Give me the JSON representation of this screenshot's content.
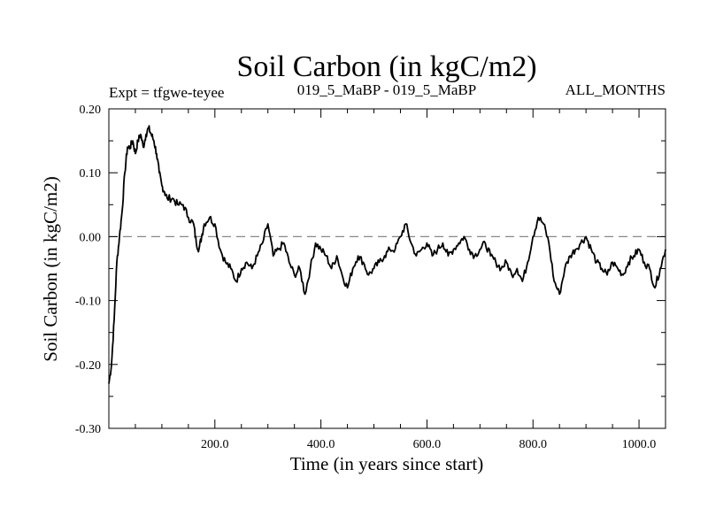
{
  "chart_data": {
    "type": "line",
    "title": "Soil Carbon (in kgC/m2)",
    "subtitle_left": "Expt = tfgwe-teyee",
    "subtitle_center": "019_5_MaBP - 019_5_MaBP",
    "subtitle_right": "ALL_MONTHS",
    "xlabel": "Time (in years since start)",
    "ylabel": "Soil Carbon (in kgC/m2)",
    "xlim": [
      0,
      1050
    ],
    "ylim": [
      -0.3,
      0.2
    ],
    "x_ticks": [
      200,
      400,
      600,
      800,
      1000
    ],
    "x_tick_labels": [
      "200.0",
      "400.0",
      "600.0",
      "800.0",
      "1000.0"
    ],
    "y_ticks": [
      0.2,
      0.1,
      0.0,
      -0.1,
      -0.2,
      -0.3
    ],
    "y_tick_labels": [
      "0.20",
      "0.10",
      "0.00",
      "-0.10",
      "-0.20",
      "-0.30"
    ],
    "reference_line": {
      "y": 0.0,
      "style": "dashed"
    },
    "series": [
      {
        "name": "Soil Carbon",
        "x": [
          0,
          5,
          10,
          15,
          20,
          25,
          30,
          35,
          40,
          45,
          50,
          55,
          60,
          65,
          70,
          75,
          80,
          85,
          90,
          95,
          100,
          105,
          110,
          120,
          130,
          140,
          150,
          160,
          165,
          170,
          175,
          180,
          190,
          200,
          210,
          220,
          230,
          240,
          250,
          260,
          270,
          280,
          290,
          300,
          310,
          320,
          330,
          340,
          350,
          360,
          370,
          380,
          390,
          400,
          410,
          420,
          430,
          440,
          450,
          460,
          470,
          480,
          490,
          500,
          510,
          520,
          530,
          540,
          550,
          560,
          570,
          580,
          590,
          600,
          610,
          620,
          630,
          640,
          650,
          660,
          670,
          680,
          690,
          700,
          710,
          720,
          730,
          740,
          750,
          760,
          770,
          780,
          790,
          800,
          810,
          820,
          830,
          840,
          850,
          860,
          870,
          880,
          890,
          900,
          910,
          920,
          930,
          940,
          950,
          960,
          970,
          980,
          990,
          1000,
          1010,
          1020,
          1030,
          1040,
          1050
        ],
        "values": [
          -0.23,
          -0.2,
          -0.13,
          -0.04,
          0.0,
          0.04,
          0.1,
          0.14,
          0.14,
          0.15,
          0.13,
          0.15,
          0.16,
          0.14,
          0.16,
          0.17,
          0.16,
          0.15,
          0.13,
          0.1,
          0.08,
          0.07,
          0.06,
          0.06,
          0.05,
          0.05,
          0.03,
          0.02,
          -0.01,
          -0.02,
          0.0,
          0.02,
          0.03,
          0.02,
          -0.02,
          -0.04,
          -0.05,
          -0.07,
          -0.05,
          -0.04,
          -0.05,
          -0.03,
          -0.01,
          0.02,
          -0.03,
          -0.02,
          -0.01,
          -0.04,
          -0.06,
          -0.05,
          -0.09,
          -0.05,
          -0.01,
          -0.02,
          -0.03,
          -0.05,
          -0.03,
          -0.06,
          -0.08,
          -0.05,
          -0.03,
          -0.04,
          -0.06,
          -0.05,
          -0.04,
          -0.03,
          -0.02,
          -0.02,
          0.0,
          0.02,
          -0.01,
          -0.03,
          -0.02,
          -0.01,
          -0.03,
          -0.02,
          -0.01,
          -0.03,
          -0.02,
          -0.01,
          0.0,
          -0.02,
          -0.03,
          -0.02,
          -0.01,
          -0.03,
          -0.04,
          -0.05,
          -0.04,
          -0.06,
          -0.05,
          -0.07,
          -0.04,
          0.0,
          0.03,
          0.02,
          -0.01,
          -0.07,
          -0.09,
          -0.05,
          -0.03,
          -0.02,
          -0.01,
          0.0,
          -0.02,
          -0.04,
          -0.05,
          -0.06,
          -0.04,
          -0.05,
          -0.06,
          -0.04,
          -0.03,
          -0.02,
          -0.04,
          -0.05,
          -0.08,
          -0.05,
          -0.02
        ]
      }
    ]
  }
}
